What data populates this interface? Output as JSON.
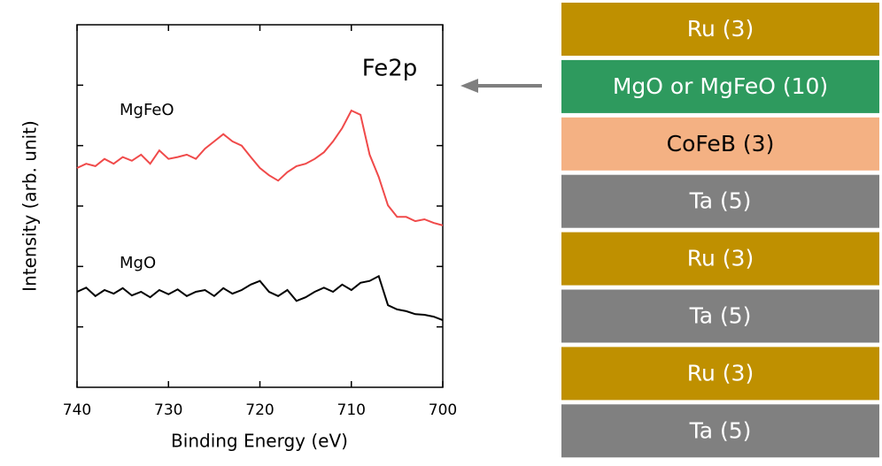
{
  "chart_data": {
    "type": "line",
    "annotation": "Fe2p",
    "x_label": "Binding Energy (eV)",
    "y_label": "Intensity (arb. unit)",
    "x": [
      740,
      739,
      738,
      737,
      736,
      735,
      734,
      733,
      732,
      731,
      730,
      729,
      728,
      727,
      726,
      725,
      724,
      723,
      722,
      721,
      720,
      719,
      718,
      717,
      716,
      715,
      714,
      713,
      712,
      711,
      710,
      709,
      708,
      707,
      706,
      705,
      704,
      703,
      702,
      701,
      700
    ],
    "series": [
      {
        "name": "MgFeO",
        "color": "#f04a4a",
        "values": [
          3.63,
          3.7,
          3.66,
          3.78,
          3.7,
          3.81,
          3.75,
          3.85,
          3.7,
          3.92,
          3.78,
          3.81,
          3.85,
          3.78,
          3.95,
          4.07,
          4.19,
          4.07,
          4.0,
          3.81,
          3.63,
          3.51,
          3.42,
          3.56,
          3.66,
          3.7,
          3.78,
          3.89,
          4.07,
          4.29,
          4.58,
          4.51,
          3.85,
          3.48,
          3.01,
          2.82,
          2.82,
          2.75,
          2.78,
          2.72,
          2.68
        ]
      },
      {
        "name": "MgO",
        "color": "#000000",
        "values": [
          1.58,
          1.65,
          1.51,
          1.61,
          1.55,
          1.64,
          1.52,
          1.58,
          1.49,
          1.61,
          1.54,
          1.62,
          1.51,
          1.58,
          1.61,
          1.51,
          1.64,
          1.55,
          1.61,
          1.7,
          1.76,
          1.58,
          1.51,
          1.61,
          1.43,
          1.49,
          1.58,
          1.65,
          1.58,
          1.7,
          1.61,
          1.73,
          1.76,
          1.84,
          1.36,
          1.29,
          1.26,
          1.21,
          1.2,
          1.17,
          1.11
        ]
      }
    ],
    "xlim": [
      740,
      700
    ],
    "xticks": [
      740,
      730,
      720,
      710,
      700
    ],
    "ylim": [
      0,
      6
    ],
    "yticks": [
      1,
      2,
      3,
      4,
      5
    ]
  },
  "layer_stack": {
    "layers": [
      {
        "label": "Ru (3)",
        "color": "#bf9000",
        "text_color": "#ffffff"
      },
      {
        "label": "MgO or MgFeO (10)",
        "color": "#2e9a5e",
        "text_color": "#ffffff"
      },
      {
        "label": "CoFeB (3)",
        "color": "#f4b183",
        "text_color": "#000000"
      },
      {
        "label": "Ta (5)",
        "color": "#808080",
        "text_color": "#ffffff"
      },
      {
        "label": "Ru (3)",
        "color": "#bf9000",
        "text_color": "#ffffff"
      },
      {
        "label": "Ta (5)",
        "color": "#808080",
        "text_color": "#ffffff"
      },
      {
        "label": "Ru (3)",
        "color": "#bf9000",
        "text_color": "#ffffff"
      },
      {
        "label": "Ta (5)",
        "color": "#808080",
        "text_color": "#ffffff"
      }
    ]
  }
}
